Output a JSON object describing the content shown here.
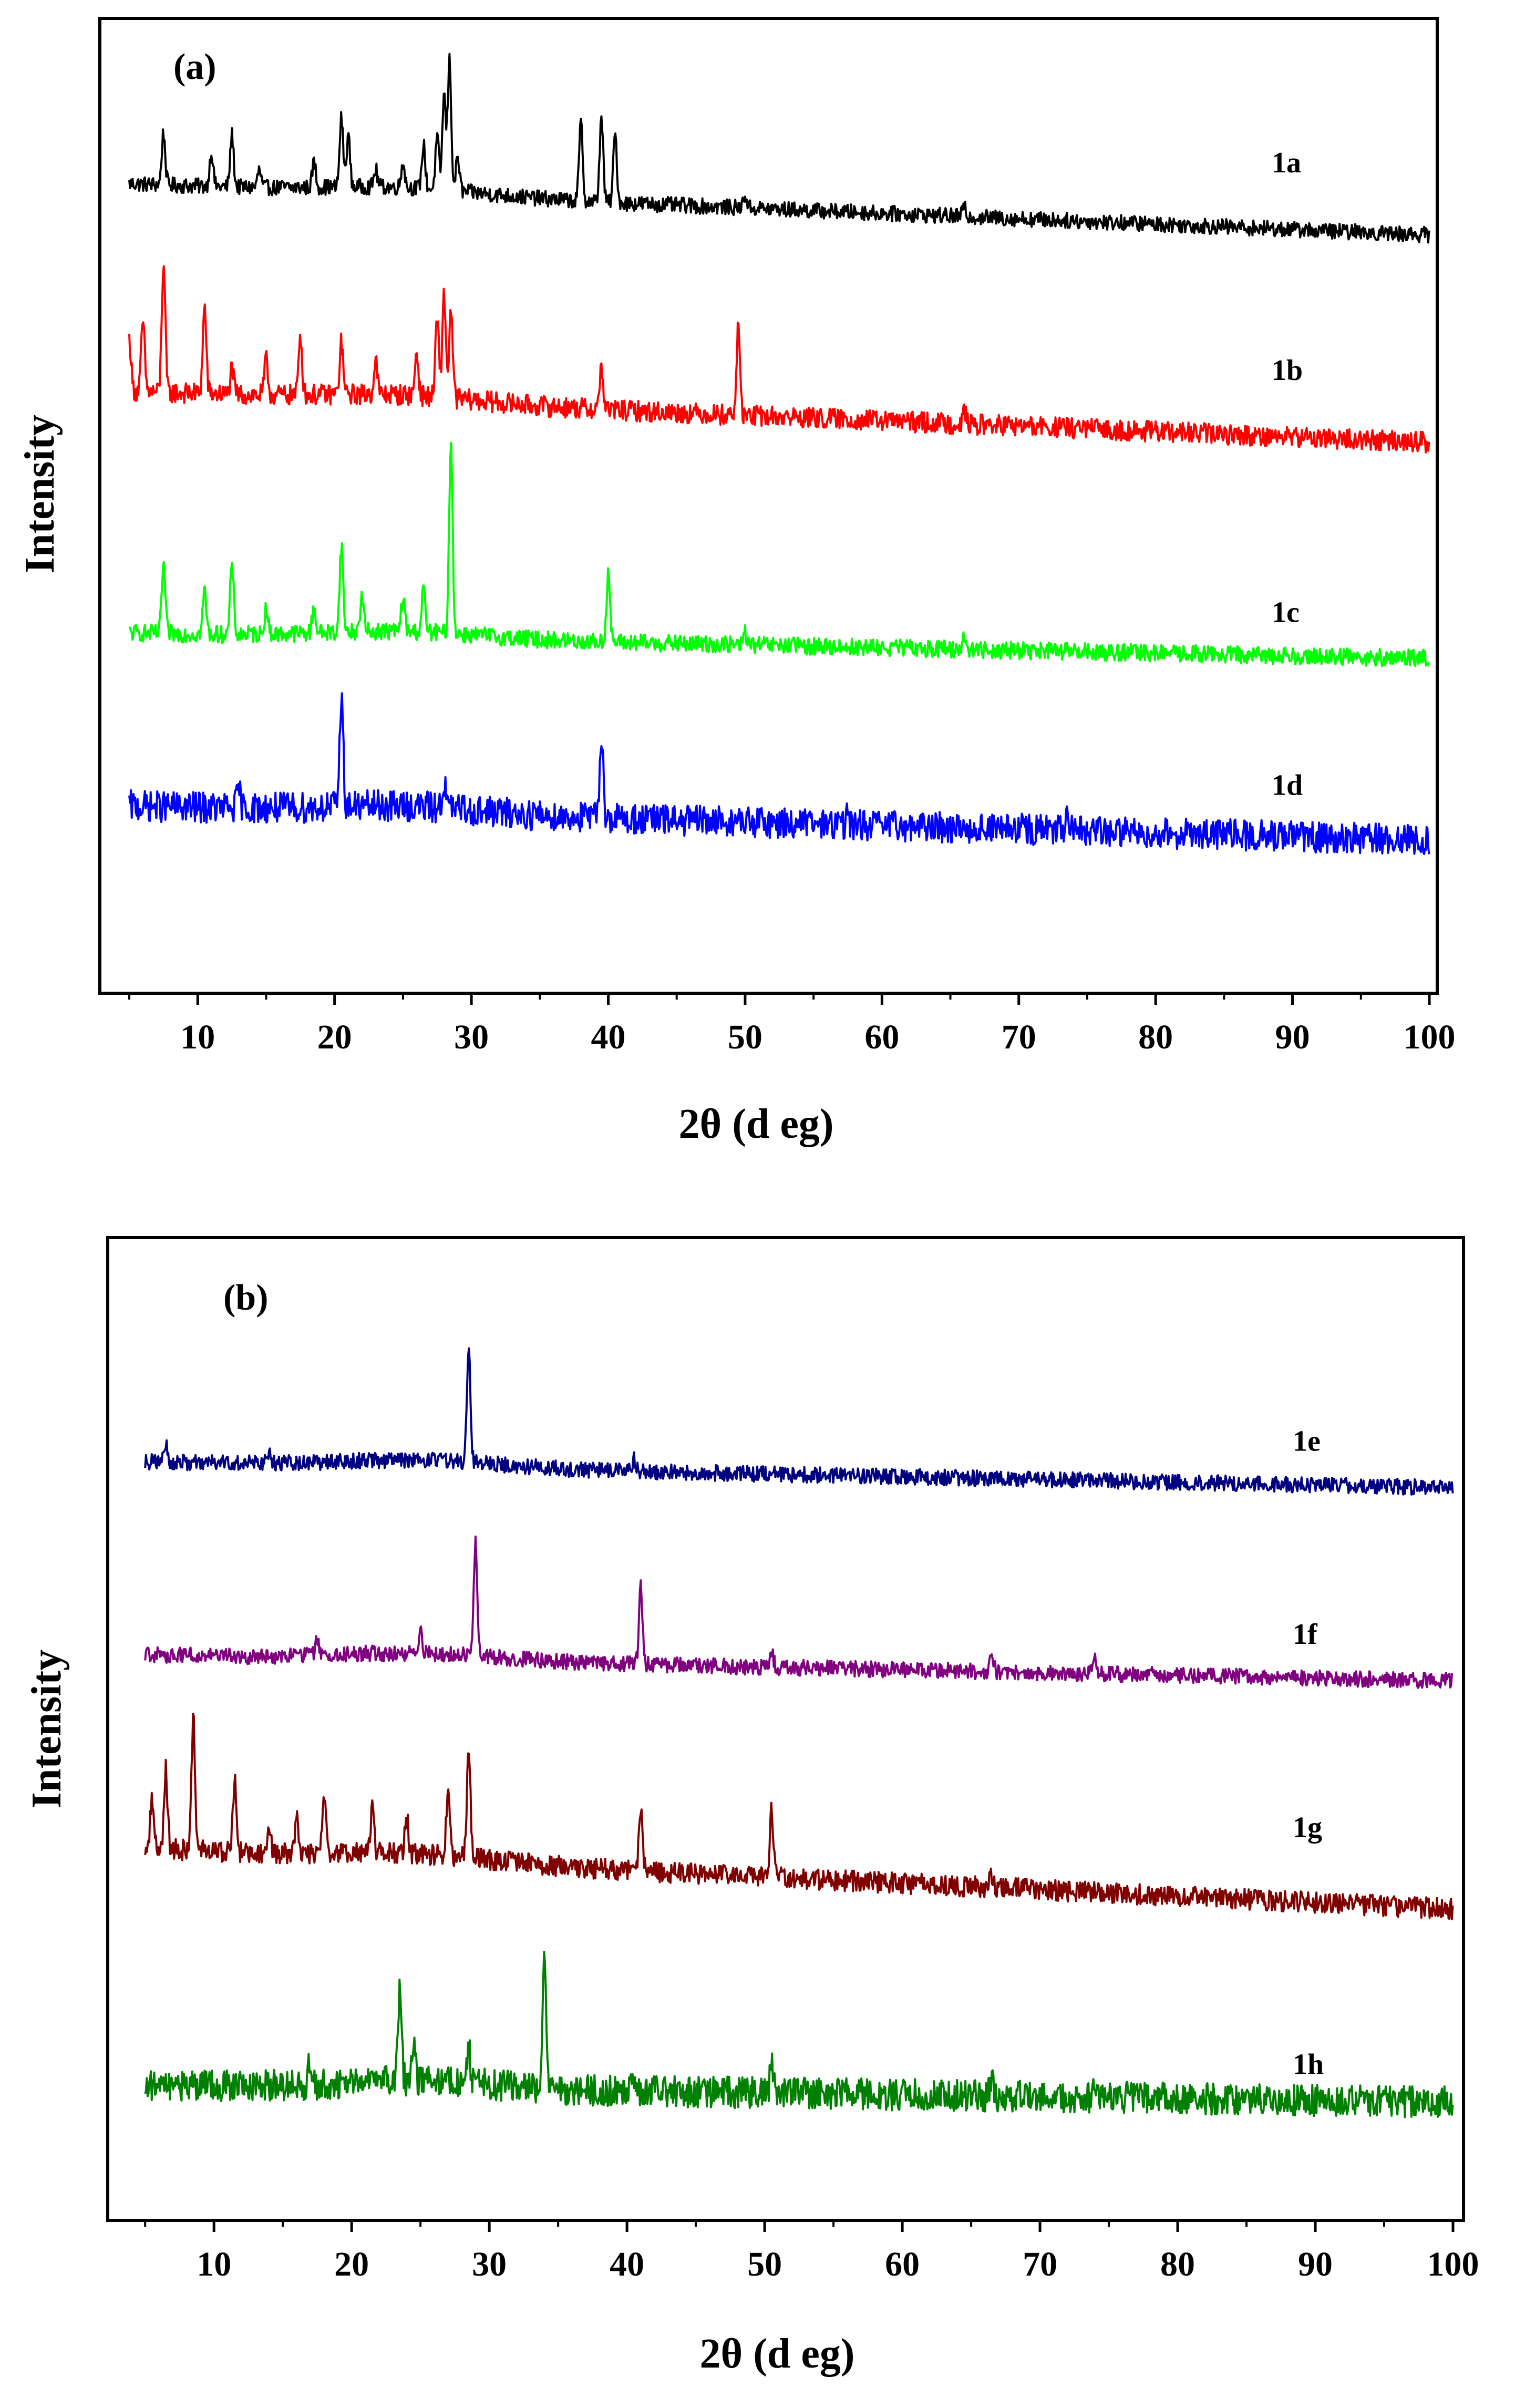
{
  "chart_data": [
    {
      "type": "line",
      "panel_label": "(a)",
      "xlabel": "2θ (d eg)",
      "ylabel": "Intensity",
      "xlim": [
        4,
        100
      ],
      "ylim": [
        0,
        100
      ],
      "x_ticks": [
        10,
        20,
        30,
        40,
        50,
        60,
        70,
        80,
        90,
        100
      ],
      "grid": false,
      "series": [
        {
          "name": "1a",
          "color": "#000000",
          "baseline": 84,
          "end": 78,
          "noise": 0.9,
          "peaks": [
            [
              7.5,
              6
            ],
            [
              11,
              4
            ],
            [
              12.5,
              6
            ],
            [
              14.5,
              2
            ],
            [
              18.5,
              3
            ],
            [
              20.5,
              8
            ],
            [
              21,
              6
            ],
            [
              23,
              2
            ],
            [
              25,
              3
            ],
            [
              26.5,
              5
            ],
            [
              27.5,
              6
            ],
            [
              28,
              11
            ],
            [
              28.4,
              15
            ],
            [
              29,
              4
            ],
            [
              38,
              9
            ],
            [
              39.5,
              10
            ],
            [
              40.5,
              8
            ],
            [
              50,
              1.5
            ],
            [
              66,
              1
            ]
          ]
        },
        {
          "name": "1b",
          "color": "#ff0000",
          "baseline": 60,
          "end": 54,
          "noise": 1.2,
          "peaks": [
            [
              5,
              6
            ],
            [
              6,
              8
            ],
            [
              7.5,
              15
            ],
            [
              10.5,
              10
            ],
            [
              12.5,
              3
            ],
            [
              15,
              4
            ],
            [
              17.5,
              7
            ],
            [
              20.5,
              6
            ],
            [
              23,
              4
            ],
            [
              26,
              5
            ],
            [
              27.5,
              9
            ],
            [
              28,
              12
            ],
            [
              28.5,
              10
            ],
            [
              39.5,
              5
            ],
            [
              49.5,
              10
            ],
            [
              66,
              1.5
            ]
          ]
        },
        {
          "name": "1c",
          "color": "#00ff00",
          "baseline": 32,
          "end": 29,
          "noise": 1.0,
          "peaks": [
            [
              7.5,
              8
            ],
            [
              10.5,
              5
            ],
            [
              12.5,
              8
            ],
            [
              15,
              3
            ],
            [
              18.5,
              3
            ],
            [
              20.5,
              10
            ],
            [
              22,
              4
            ],
            [
              25,
              4
            ],
            [
              26.5,
              5
            ],
            [
              28.5,
              22
            ],
            [
              40,
              8
            ],
            [
              50,
              1.5
            ],
            [
              66,
              1.5
            ]
          ]
        },
        {
          "name": "1d",
          "color": "#0000ff",
          "baseline": 12,
          "end": 8,
          "noise": 1.8,
          "peaks": [
            [
              13,
              2
            ],
            [
              20.5,
              13
            ],
            [
              28,
              3
            ],
            [
              39.5,
              10
            ],
            [
              57.5,
              1
            ],
            [
              73.5,
              1
            ]
          ]
        }
      ]
    },
    {
      "type": "line",
      "panel_label": "(b)",
      "xlabel": "2θ (d eg)",
      "ylabel": "Intensity",
      "xlim": [
        4,
        100
      ],
      "ylim": [
        0,
        100
      ],
      "x_ticks": [
        10,
        20,
        30,
        40,
        50,
        60,
        70,
        80,
        90,
        100
      ],
      "grid": false,
      "series": [
        {
          "name": "1e",
          "color": "#000080",
          "baseline": 79,
          "end": 76,
          "noise": 0.9,
          "peaks": [
            [
              6.5,
              2
            ],
            [
              14,
              1.5
            ],
            [
              28.5,
              13
            ],
            [
              40.5,
              1.5
            ]
          ]
        },
        {
          "name": "1f",
          "color": "#800080",
          "baseline": 57,
          "end": 54,
          "noise": 0.9,
          "peaks": [
            [
              17.5,
              2
            ],
            [
              25,
              2.5
            ],
            [
              29,
              13
            ],
            [
              41,
              9
            ],
            [
              50.5,
              2
            ],
            [
              66.5,
              2
            ],
            [
              74,
              1.5
            ]
          ]
        },
        {
          "name": "1g",
          "color": "#800000",
          "baseline": 35,
          "end": 28,
          "noise": 1.2,
          "peaks": [
            [
              5.5,
              6
            ],
            [
              6.5,
              9
            ],
            [
              8.5,
              15
            ],
            [
              11.5,
              8
            ],
            [
              14,
              3
            ],
            [
              16,
              4
            ],
            [
              18,
              6
            ],
            [
              21.5,
              5
            ],
            [
              24,
              4
            ],
            [
              27,
              7
            ],
            [
              28.5,
              13
            ],
            [
              41,
              7
            ],
            [
              50.5,
              8
            ],
            [
              66.5,
              1.5
            ]
          ]
        },
        {
          "name": "1h",
          "color": "#008000",
          "baseline": 8,
          "end": 6,
          "noise": 1.8,
          "peaks": [
            [
              17,
              3
            ],
            [
              24.5,
              4
            ],
            [
              23.5,
              11
            ],
            [
              28.5,
              4
            ],
            [
              34,
              16
            ],
            [
              40.5,
              2
            ],
            [
              50.5,
              3
            ],
            [
              66.5,
              2
            ],
            [
              74,
              2
            ],
            [
              95,
              1
            ]
          ]
        }
      ]
    }
  ]
}
